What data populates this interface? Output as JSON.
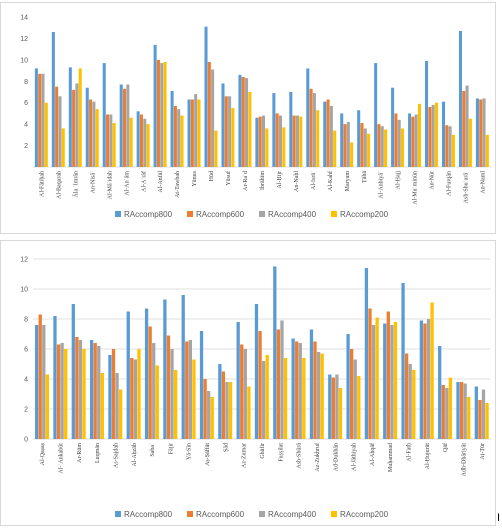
{
  "colors": {
    "series": [
      "#5b9bd5",
      "#ed7d31",
      "#a5a5a5",
      "#ffc000"
    ],
    "grid": "#d9d9d9",
    "axis": "#595959"
  },
  "stray_text": "I",
  "chart_data": [
    {
      "type": "bar",
      "title": "",
      "xlabel": "",
      "ylabel": "",
      "ylim": [
        0,
        14
      ],
      "yticks": [
        2,
        4,
        6,
        8,
        10,
        12,
        14
      ],
      "grid": false,
      "legend": "bottom",
      "categories": [
        "Al-Fātiḥah",
        "Al-Baqarah",
        "Āla ʿImrān",
        "An-Nisāʾ",
        "Al-Māʾidah",
        "Al-Anʿām",
        "Al-Aʿrāf",
        "Al-Anfāl",
        "At-Tawbah",
        "Yūnus",
        "Hūd",
        "Yūsuf",
        "Ar-Raʿd",
        "Ibrāhīm",
        "Al-Ḥijr",
        "An-Naḥl",
        "Al-Isrāʾ",
        "Al-Kahf",
        "Maryam",
        "Ṭāhā",
        "Al-Anbiyāʾ",
        "Al-Ḥajj",
        "Al-Muʾminūn",
        "An-Nūr",
        "Al-Furqān",
        "Ash-Shuʿarāʾ",
        "An-Naml"
      ],
      "series": [
        {
          "name": "RAccomp800",
          "values": [
            9.2,
            12.6,
            9.3,
            7.4,
            9.7,
            7.7,
            5.2,
            11.4,
            7.1,
            6.3,
            13.1,
            7.8,
            8.6,
            4.6,
            6.9,
            7.0,
            9.2,
            6.1,
            5.0,
            5.3,
            9.7,
            7.4,
            5.0,
            9.9,
            6.1,
            12.7,
            6.4
          ]
        },
        {
          "name": "RAccomp600",
          "values": [
            8.7,
            7.5,
            7.2,
            6.3,
            4.9,
            7.3,
            4.9,
            10.0,
            5.7,
            6.3,
            9.8,
            6.6,
            8.4,
            4.7,
            5.0,
            4.8,
            7.3,
            6.3,
            4.0,
            4.1,
            4.0,
            5.0,
            4.7,
            5.6,
            3.9,
            7.1,
            6.3
          ]
        },
        {
          "name": "RAccomp400",
          "values": [
            8.7,
            6.6,
            7.8,
            6.1,
            4.9,
            7.7,
            4.5,
            9.7,
            5.4,
            6.8,
            9.1,
            6.6,
            8.3,
            4.8,
            4.8,
            4.8,
            6.9,
            5.7,
            4.2,
            3.6,
            3.8,
            4.4,
            4.9,
            5.8,
            3.8,
            7.6,
            6.4
          ]
        },
        {
          "name": "RAccomp200",
          "values": [
            6.0,
            3.6,
            9.2,
            5.4,
            4.1,
            4.6,
            4.0,
            9.8,
            4.8,
            6.3,
            3.4,
            5.5,
            7.0,
            3.6,
            3.7,
            4.7,
            5.3,
            3.4,
            2.3,
            3.1,
            3.5,
            3.6,
            5.9,
            6.0,
            3.0,
            4.5,
            3.0
          ]
        }
      ]
    },
    {
      "type": "bar",
      "title": "",
      "xlabel": "",
      "ylabel": "",
      "ylim": [
        0,
        12
      ],
      "yticks": [
        0,
        2,
        4,
        6,
        8,
        10,
        12
      ],
      "grid": true,
      "legend": "bottom",
      "categories": [
        "Al-Qaṣaṣ",
        "Al-ʿAnkabūt",
        "Ar-Rūm",
        "Luqmān",
        "As-Sajdah",
        "Al-Aḥzāb",
        "Sabaʾ",
        "Fāṭir",
        "Yā-Sīn",
        "Aṣ-Ṣāffāt",
        "Ṣād",
        "Az-Zumar",
        "Ghāfir",
        "Fuṣṣilat",
        "Ash-Shūrā",
        "Az-Zukhruf",
        "Ad-Dukhān",
        "Al-Jāthiyah",
        "Al-Aḥqāf",
        "Muḥammad",
        "Al-Fatḥ",
        "Al-Ḥujurāt",
        "Qāf",
        "Adh-Dhāriyāt",
        "Aṭ-Ṭūr"
      ],
      "series": [
        {
          "name": "RAccomp800",
          "values": [
            7.6,
            8.2,
            9.0,
            6.6,
            5.6,
            8.5,
            8.7,
            9.3,
            9.6,
            7.2,
            5.0,
            7.8,
            9.0,
            11.5,
            6.7,
            7.3,
            4.3,
            7.0,
            11.4,
            7.7,
            10.4,
            7.9,
            6.2,
            3.8,
            3.5
          ]
        },
        {
          "name": "RAccomp600",
          "values": [
            8.3,
            6.3,
            6.8,
            6.4,
            6.0,
            5.4,
            7.5,
            6.9,
            6.5,
            4.0,
            4.5,
            6.3,
            7.2,
            7.3,
            6.5,
            6.5,
            4.1,
            6.0,
            8.7,
            8.5,
            5.7,
            7.7,
            3.6,
            3.8,
            2.6
          ]
        },
        {
          "name": "RAccomp400",
          "values": [
            7.6,
            6.4,
            6.6,
            6.2,
            4.4,
            5.3,
            6.4,
            6.0,
            6.6,
            3.2,
            3.8,
            6.0,
            5.2,
            7.9,
            6.4,
            5.8,
            4.3,
            5.3,
            7.6,
            7.6,
            5.0,
            8.0,
            3.4,
            3.7,
            3.3
          ]
        },
        {
          "name": "RAccomp200",
          "values": [
            4.3,
            6.0,
            6.0,
            4.4,
            3.3,
            6.0,
            4.9,
            4.6,
            5.3,
            2.8,
            3.8,
            3.5,
            5.6,
            5.4,
            5.4,
            5.7,
            3.4,
            4.2,
            8.1,
            7.8,
            4.6,
            9.1,
            4.1,
            2.8,
            2.4
          ]
        }
      ]
    }
  ]
}
